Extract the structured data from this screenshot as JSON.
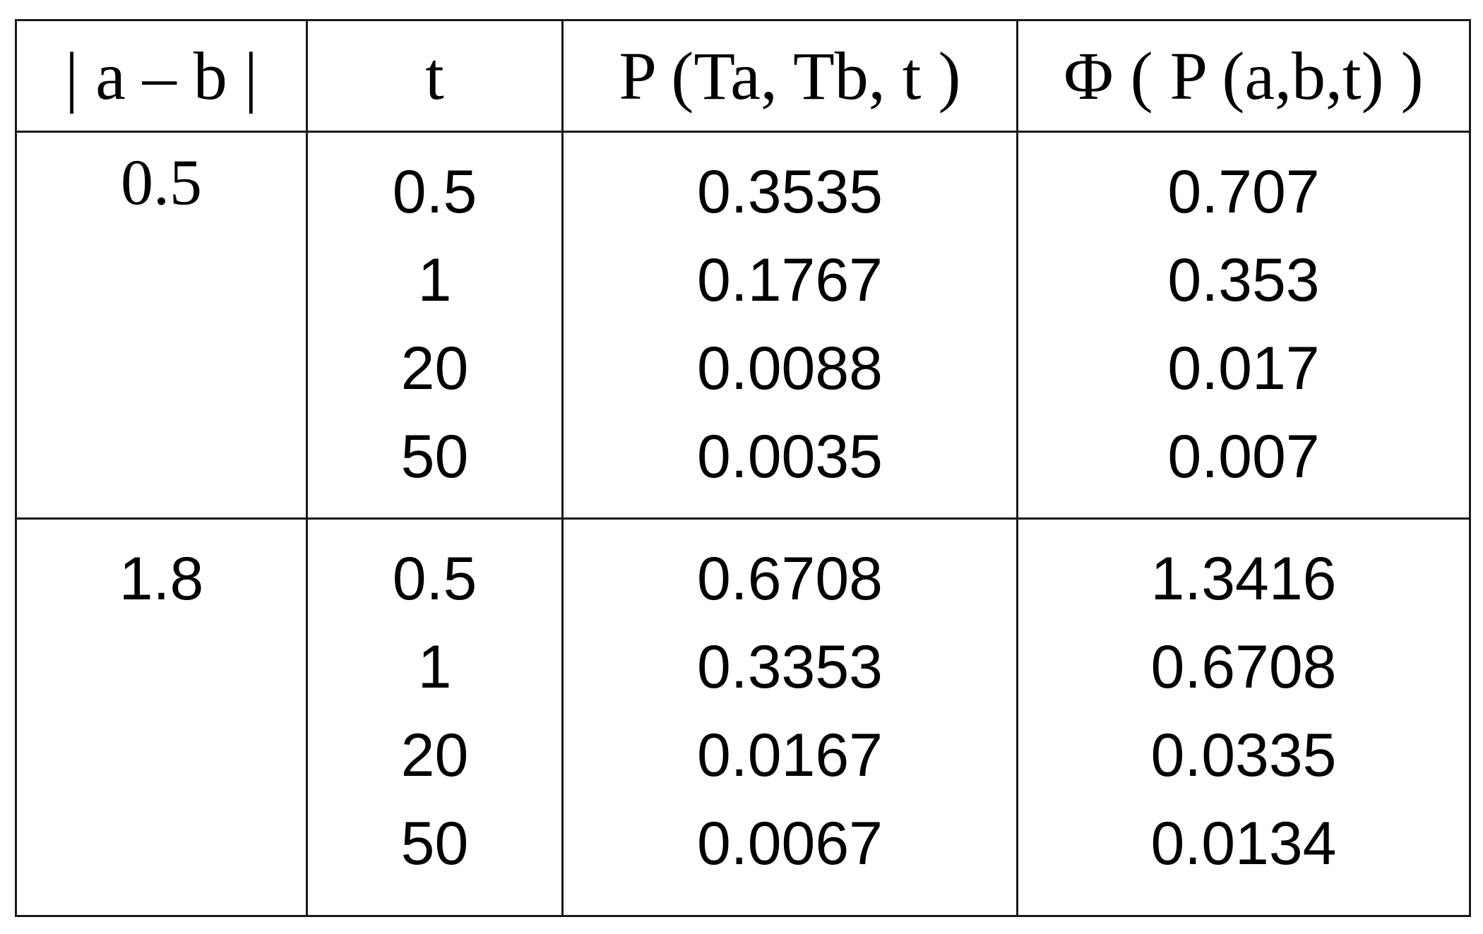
{
  "table": {
    "headers": [
      "| a – b |",
      "t",
      "P (Ta, Tb, t )",
      "Φ ( P (a,b,t) )"
    ],
    "groups": [
      {
        "ab": "0.5",
        "t": [
          "0.5",
          "1",
          "20",
          "50"
        ],
        "P": [
          "0.3535",
          "0.1767",
          "0.0088",
          "0.0035"
        ],
        "Phi": [
          "0.707",
          "0.353",
          "0.017",
          "0.007"
        ]
      },
      {
        "ab": "1.8",
        "t": [
          "0.5",
          "1",
          "20",
          "50"
        ],
        "P": [
          "0.6708",
          "0.3353",
          "0.0167",
          "0.0067"
        ],
        "Phi": [
          "1.3416",
          "0.6708",
          "0.0335",
          "0.0134"
        ]
      }
    ]
  }
}
